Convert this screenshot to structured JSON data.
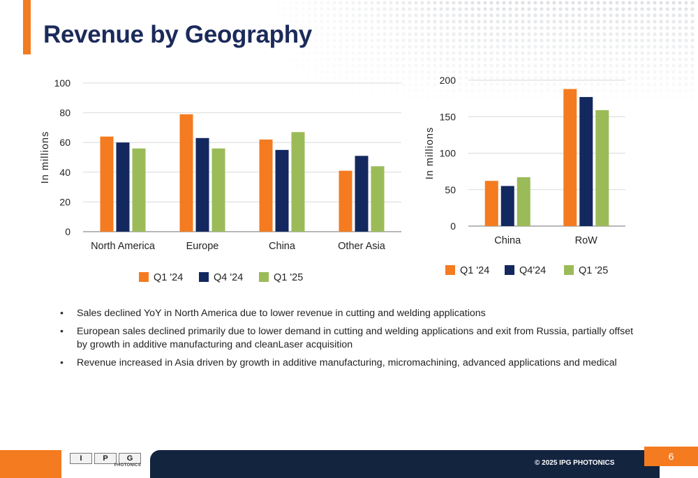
{
  "title": "Revenue by Geography",
  "page_number": "6",
  "copyright": "© 2025 IPG PHOTONICS",
  "logo": {
    "letters": [
      "I",
      "P",
      "G"
    ],
    "subtitle": "PHOTONICS"
  },
  "colors": {
    "orange": "#f47b20",
    "navy": "#13285e",
    "green": "#9bbb59",
    "title": "#1b2a5a"
  },
  "bullets": [
    "Sales declined YoY in North America due to lower revenue in cutting and welding applications",
    "European sales declined primarily due to lower demand in cutting and welding applications and exit from Russia, partially offset by growth in additive manufacturing and cleanLaser acquisition",
    "Revenue increased in Asia driven by growth in additive manufacturing, micromachining, advanced applications and medical"
  ],
  "chart_data": [
    {
      "type": "bar",
      "title": "",
      "xlabel": "",
      "ylabel": "In millions",
      "categories": [
        "North America",
        "Europe",
        "China",
        "Other Asia"
      ],
      "ylim": [
        0,
        100
      ],
      "yticks": [
        0,
        20,
        40,
        60,
        80,
        100
      ],
      "grid": true,
      "legend": "bottom",
      "series": [
        {
          "name": "Q1 '24",
          "color": "#f47b20",
          "values": [
            64,
            79,
            62,
            41
          ]
        },
        {
          "name": "Q4 '24",
          "color": "#13285e",
          "values": [
            60,
            63,
            55,
            51
          ]
        },
        {
          "name": "Q1 '25",
          "color": "#9bbb59",
          "values": [
            56,
            56,
            67,
            44
          ]
        }
      ]
    },
    {
      "type": "bar",
      "title": "",
      "xlabel": "",
      "ylabel": "In millions",
      "categories": [
        "China",
        "RoW"
      ],
      "ylim": [
        0,
        200
      ],
      "yticks": [
        0,
        50,
        100,
        150,
        200
      ],
      "grid": true,
      "legend": "bottom",
      "series": [
        {
          "name": "Q1 '24",
          "color": "#f47b20",
          "values": [
            62,
            188
          ]
        },
        {
          "name": "Q4'24",
          "color": "#13285e",
          "values": [
            55,
            177
          ]
        },
        {
          "name": "Q1 '25",
          "color": "#9bbb59",
          "values": [
            67,
            159
          ]
        }
      ]
    }
  ]
}
